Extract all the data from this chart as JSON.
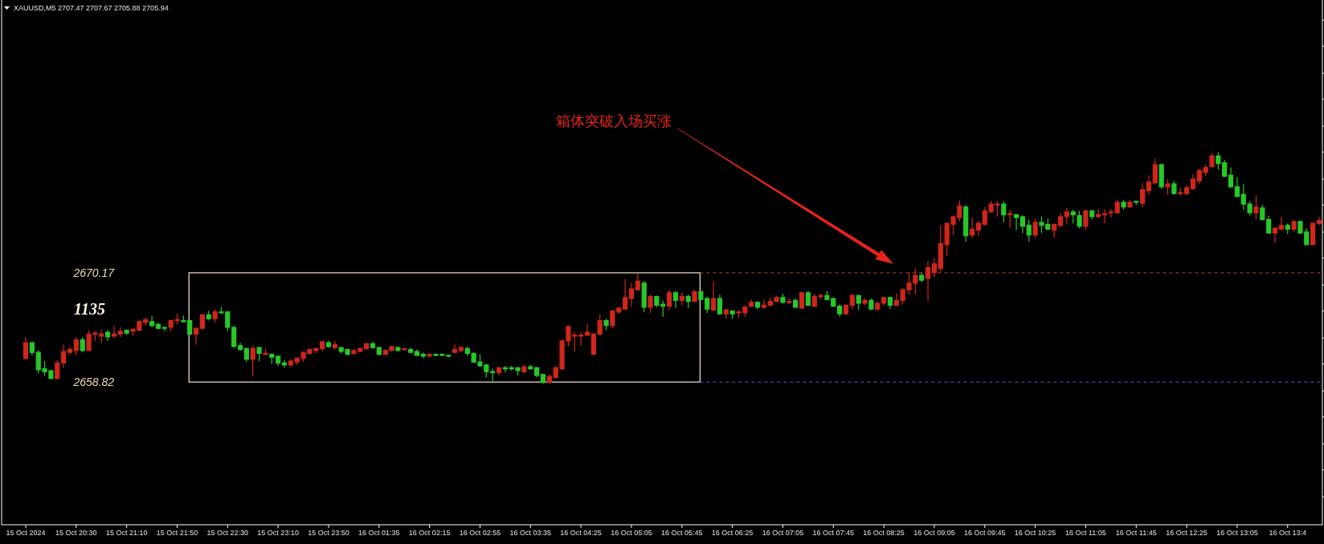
{
  "chart_data": {
    "type": "candlestick",
    "title": "XAUUSD,M5  2707.47 2707.67 2705.88 2705.94",
    "categories": [
      "15 Oct 2024",
      null,
      null,
      null,
      null,
      null,
      null,
      null,
      "15 Oct 20:30",
      null,
      null,
      null,
      null,
      null,
      null,
      null,
      "15 Oct 21:10",
      null,
      null,
      null,
      null,
      null,
      null,
      null,
      "15 Oct 21:50",
      null,
      null,
      null,
      null,
      null,
      null,
      null,
      "15 Oct 22:30",
      null,
      null,
      null,
      null,
      null,
      null,
      null,
      "15 Oct 23:10",
      null,
      null,
      null,
      null,
      null,
      null,
      null,
      "15 Oct 23:50",
      null,
      null,
      null,
      null,
      null,
      null,
      null,
      "16 Oct 01:35",
      null,
      null,
      null,
      null,
      null,
      null,
      null,
      "16 Oct 02:15",
      null,
      null,
      null,
      null,
      null,
      null,
      null,
      "16 Oct 02:55",
      null,
      null,
      null,
      null,
      null,
      null,
      null,
      "16 Oct 03:35",
      null,
      null,
      null,
      null,
      null,
      null,
      null,
      "16 Oct 04:25",
      null,
      null,
      null,
      null,
      null,
      null,
      null,
      "16 Oct 05:05",
      null,
      null,
      null,
      null,
      null,
      null,
      null,
      "16 Oct 05:45",
      null,
      null,
      null,
      null,
      null,
      null,
      null,
      "16 Oct 06:25",
      null,
      null,
      null,
      null,
      null,
      null,
      null,
      "16 Oct 07:05",
      null,
      null,
      null,
      null,
      null,
      null,
      null,
      "16 Oct 07:45",
      null,
      null,
      null,
      null,
      null,
      null,
      null,
      "16 Oct 08:25",
      null,
      null,
      null,
      null,
      null,
      null,
      null,
      "16 Oct 09:05",
      null,
      null,
      null,
      null,
      null,
      null,
      null,
      "16 Oct 09:45",
      null,
      null,
      null,
      null,
      null,
      null,
      null,
      "16 Oct 10:25",
      null,
      null,
      null,
      null,
      null,
      null,
      null,
      "16 Oct 11:05",
      null,
      null,
      null,
      null,
      null,
      null,
      null,
      "16 Oct 11:45",
      null,
      null,
      null,
      null,
      null,
      null,
      null,
      "16 Oct 12:25",
      null,
      null,
      null,
      null,
      null,
      null,
      null,
      "16 Oct 13:05",
      null,
      null,
      null,
      null,
      null,
      null,
      null,
      "16 Oct 13:4",
      null,
      null,
      null,
      null,
      null
    ],
    "ohlc": [
      [
        2661.3,
        2663.5,
        2661.1,
        2662.9
      ],
      [
        2662.9,
        2663.0,
        2661.6,
        2661.9
      ],
      [
        2661.9,
        2662.1,
        2659.7,
        2660.1
      ],
      [
        2660.2,
        2661.0,
        2659.5,
        2659.9
      ],
      [
        2660.0,
        2660.1,
        2659.1,
        2659.2
      ],
      [
        2659.2,
        2661.1,
        2659.1,
        2660.8
      ],
      [
        2660.8,
        2662.7,
        2660.3,
        2662.0
      ],
      [
        2661.9,
        2662.5,
        2661.6,
        2662.2
      ],
      [
        2662.1,
        2663.5,
        2661.6,
        2663.2
      ],
      [
        2663.2,
        2663.5,
        2661.9,
        2662.1
      ],
      [
        2662.1,
        2664.2,
        2662.1,
        2663.8
      ],
      [
        2663.8,
        2664.1,
        2663.1,
        2663.9
      ],
      [
        2663.6,
        2664.3,
        2662.9,
        2663.8
      ],
      [
        2664.0,
        2664.2,
        2663.1,
        2663.5
      ],
      [
        2663.6,
        2664.6,
        2663.4,
        2663.8
      ],
      [
        2663.8,
        2664.5,
        2663.5,
        2664.1
      ],
      [
        2664.2,
        2664.3,
        2663.7,
        2663.9
      ],
      [
        2664.1,
        2664.4,
        2663.6,
        2664.3
      ],
      [
        2664.2,
        2665.3,
        2664.1,
        2665.1
      ],
      [
        2665.0,
        2665.5,
        2664.7,
        2665.3
      ],
      [
        2665.1,
        2665.7,
        2664.5,
        2664.7
      ],
      [
        2664.8,
        2665.0,
        2664.3,
        2664.4
      ],
      [
        2664.5,
        2664.6,
        2664.1,
        2664.4
      ],
      [
        2664.5,
        2665.3,
        2664.1,
        2665.2
      ],
      [
        2665.2,
        2665.9,
        2664.8,
        2665.3
      ],
      [
        2665.2,
        2665.7,
        2665.0,
        2665.1
      ],
      [
        2665.2,
        2665.3,
        2663.7,
        2663.8
      ],
      [
        2663.8,
        2664.4,
        2662.7,
        2664.4
      ],
      [
        2664.4,
        2665.9,
        2664.3,
        2665.8
      ],
      [
        2665.8,
        2666.2,
        2665.2,
        2665.4
      ],
      [
        2665.4,
        2666.4,
        2665.0,
        2666.1
      ],
      [
        2666.1,
        2666.6,
        2665.9,
        2666.0
      ],
      [
        2666.1,
        2666.2,
        2664.1,
        2664.5
      ],
      [
        2664.5,
        2664.7,
        2662.4,
        2662.5
      ],
      [
        2662.6,
        2662.9,
        2662.1,
        2662.2
      ],
      [
        2662.3,
        2662.4,
        2660.9,
        2661.2
      ],
      [
        2661.2,
        2662.6,
        2659.4,
        2662.3
      ],
      [
        2662.4,
        2662.5,
        2661.0,
        2661.8
      ],
      [
        2661.7,
        2662.3,
        2661.6,
        2661.8
      ],
      [
        2661.7,
        2661.8,
        2660.7,
        2661.4
      ],
      [
        2661.5,
        2661.6,
        2660.5,
        2660.8
      ],
      [
        2660.8,
        2661.1,
        2660.3,
        2660.6
      ],
      [
        2660.6,
        2661.2,
        2660.4,
        2661.0
      ],
      [
        2660.9,
        2661.4,
        2660.6,
        2661.3
      ],
      [
        2661.3,
        2662.0,
        2660.9,
        2661.9
      ],
      [
        2661.8,
        2662.3,
        2661.7,
        2662.2
      ],
      [
        2662.1,
        2662.4,
        2661.8,
        2662.3
      ],
      [
        2662.3,
        2663.1,
        2662.0,
        2663.0
      ],
      [
        2662.9,
        2663.1,
        2662.4,
        2662.5
      ],
      [
        2662.4,
        2663.1,
        2662.2,
        2662.7
      ],
      [
        2662.4,
        2662.5,
        2661.8,
        2662.0
      ],
      [
        2662.2,
        2662.3,
        2661.6,
        2661.7
      ],
      [
        2661.8,
        2662.2,
        2661.6,
        2662.1
      ],
      [
        2662.0,
        2662.4,
        2661.9,
        2662.3
      ],
      [
        2662.3,
        2662.9,
        2662.1,
        2662.8
      ],
      [
        2662.8,
        2663.0,
        2662.3,
        2662.4
      ],
      [
        2662.4,
        2662.5,
        2661.6,
        2661.7
      ],
      [
        2661.7,
        2662.2,
        2661.6,
        2662.1
      ],
      [
        2662.1,
        2662.6,
        2662.0,
        2662.5
      ],
      [
        2662.4,
        2662.5,
        2662.0,
        2662.1
      ],
      [
        2662.2,
        2662.3,
        2662.1,
        2662.3
      ],
      [
        2662.2,
        2662.4,
        2661.8,
        2661.9
      ],
      [
        2662.0,
        2662.2,
        2661.5,
        2661.6
      ],
      [
        2661.7,
        2661.9,
        2661.3,
        2661.5
      ],
      [
        2661.5,
        2661.8,
        2661.4,
        2661.7
      ],
      [
        2661.7,
        2661.8,
        2661.5,
        2661.6
      ],
      [
        2661.7,
        2661.8,
        2661.5,
        2661.6
      ],
      [
        2661.6,
        2661.6,
        2661.4,
        2661.5
      ],
      [
        2661.9,
        2662.7,
        2661.8,
        2662.2
      ],
      [
        2662.1,
        2662.6,
        2661.9,
        2662.4
      ],
      [
        2662.3,
        2662.5,
        2661.5,
        2661.8
      ],
      [
        2661.8,
        2661.9,
        2660.8,
        2660.9
      ],
      [
        2660.9,
        2661.7,
        2660.4,
        2660.5
      ],
      [
        2660.6,
        2660.7,
        2659.3,
        2659.9
      ],
      [
        2659.9,
        2660.2,
        2658.8,
        2659.8
      ],
      [
        2659.8,
        2660.4,
        2659.5,
        2660.3
      ],
      [
        2660.3,
        2660.5,
        2659.8,
        2660.2
      ],
      [
        2660.3,
        2660.5,
        2660.0,
        2660.2
      ],
      [
        2660.3,
        2660.4,
        2659.5,
        2660.0
      ],
      [
        2659.9,
        2660.6,
        2659.7,
        2660.4
      ],
      [
        2660.4,
        2660.6,
        2660.1,
        2660.2
      ],
      [
        2660.3,
        2660.4,
        2659.3,
        2659.5
      ],
      [
        2659.6,
        2659.7,
        2658.6,
        2658.8
      ],
      [
        2658.8,
        2659.6,
        2658.6,
        2659.4
      ],
      [
        2659.3,
        2660.5,
        2659.2,
        2660.3
      ],
      [
        2660.2,
        2663.2,
        2660.1,
        2663.1
      ],
      [
        2663.1,
        2664.7,
        2662.5,
        2664.6
      ],
      [
        2663.6,
        2664.0,
        2662.0,
        2663.7
      ],
      [
        2663.6,
        2664.0,
        2662.6,
        2663.7
      ],
      [
        2663.7,
        2664.9,
        2663.6,
        2664.0
      ],
      [
        2661.7,
        2663.9,
        2661.6,
        2663.8
      ],
      [
        2663.8,
        2665.9,
        2663.7,
        2665.2
      ],
      [
        2665.2,
        2665.4,
        2664.2,
        2664.7
      ],
      [
        2664.7,
        2666.3,
        2664.4,
        2666.2
      ],
      [
        2666.1,
        2666.6,
        2665.9,
        2666.5
      ],
      [
        2666.4,
        2669.5,
        2666.3,
        2667.6
      ],
      [
        2667.5,
        2669.1,
        2666.6,
        2668.5
      ],
      [
        2668.4,
        2670.1,
        2668.3,
        2669.3
      ],
      [
        2669.1,
        2669.3,
        2666.1,
        2666.6
      ],
      [
        2666.6,
        2667.9,
        2666.0,
        2667.7
      ],
      [
        2667.7,
        2667.8,
        2666.6,
        2666.8
      ],
      [
        2666.9,
        2667.3,
        2665.6,
        2666.7
      ],
      [
        2666.7,
        2668.4,
        2666.3,
        2668.1
      ],
      [
        2668.1,
        2668.3,
        2666.5,
        2667.3
      ],
      [
        2667.3,
        2668.1,
        2666.8,
        2667.7
      ],
      [
        2667.7,
        2667.9,
        2666.5,
        2667.2
      ],
      [
        2667.2,
        2668.4,
        2667.1,
        2668.2
      ],
      [
        2668.2,
        2668.3,
        2667.4,
        2667.4
      ],
      [
        2667.5,
        2667.7,
        2666.0,
        2666.4
      ],
      [
        2666.3,
        2669.3,
        2666.2,
        2667.5
      ],
      [
        2667.5,
        2667.9,
        2665.8,
        2665.9
      ],
      [
        2665.9,
        2666.5,
        2665.4,
        2666.3
      ],
      [
        2666.2,
        2666.3,
        2665.4,
        2665.9
      ],
      [
        2666.0,
        2666.3,
        2665.5,
        2666.1
      ],
      [
        2666.0,
        2666.8,
        2665.6,
        2666.6
      ],
      [
        2666.7,
        2667.4,
        2666.6,
        2667.1
      ],
      [
        2667.1,
        2667.2,
        2666.4,
        2666.6
      ],
      [
        2666.6,
        2667.4,
        2666.4,
        2666.8
      ],
      [
        2666.8,
        2667.6,
        2666.7,
        2667.2
      ],
      [
        2667.2,
        2667.8,
        2667.1,
        2667.6
      ],
      [
        2667.6,
        2668.0,
        2667.0,
        2667.1
      ],
      [
        2667.1,
        2667.5,
        2666.9,
        2667.2
      ],
      [
        2667.3,
        2667.5,
        2666.5,
        2666.6
      ],
      [
        2666.5,
        2668.2,
        2666.4,
        2668.1
      ],
      [
        2668.1,
        2668.3,
        2666.7,
        2666.8
      ],
      [
        2666.7,
        2668.0,
        2666.6,
        2667.7
      ],
      [
        2667.7,
        2668.0,
        2667.4,
        2667.8
      ],
      [
        2667.8,
        2668.3,
        2667.3,
        2667.4
      ],
      [
        2667.5,
        2667.6,
        2666.6,
        2666.7
      ],
      [
        2666.7,
        2666.9,
        2665.6,
        2665.9
      ],
      [
        2665.9,
        2666.9,
        2665.8,
        2666.8
      ],
      [
        2666.8,
        2668.0,
        2666.4,
        2667.8
      ],
      [
        2667.8,
        2667.9,
        2666.3,
        2667.0
      ],
      [
        2667.0,
        2667.5,
        2666.8,
        2667.3
      ],
      [
        2667.3,
        2667.5,
        2666.3,
        2666.4
      ],
      [
        2666.4,
        2667.2,
        2666.2,
        2667.0
      ],
      [
        2667.0,
        2667.7,
        2666.8,
        2667.6
      ],
      [
        2667.6,
        2667.7,
        2666.4,
        2666.8
      ],
      [
        2666.8,
        2668.0,
        2666.7,
        2667.3
      ],
      [
        2667.3,
        2668.6,
        2666.9,
        2668.4
      ],
      [
        2668.4,
        2670.2,
        2667.9,
        2669.1
      ],
      [
        2669.1,
        2670.6,
        2667.9,
        2669.9
      ],
      [
        2669.9,
        2670.2,
        2669.2,
        2669.4
      ],
      [
        2669.6,
        2671.4,
        2667.2,
        2670.7
      ],
      [
        2670.2,
        2671.7,
        2669.7,
        2671.1
      ],
      [
        2670.6,
        2675.1,
        2670.3,
        2673.2
      ],
      [
        2673.1,
        2675.4,
        2671.9,
        2675.3
      ],
      [
        2675.2,
        2676.1,
        2674.1,
        2676.0
      ],
      [
        2675.9,
        2677.7,
        2675.5,
        2677.1
      ],
      [
        2677.0,
        2677.2,
        2673.4,
        2674.0
      ],
      [
        2674.1,
        2675.9,
        2673.8,
        2674.7
      ],
      [
        2674.6,
        2675.6,
        2674.0,
        2675.3
      ],
      [
        2675.2,
        2677.0,
        2675.1,
        2676.6
      ],
      [
        2676.5,
        2677.6,
        2676.4,
        2677.3
      ],
      [
        2677.2,
        2677.6,
        2676.0,
        2677.3
      ],
      [
        2677.3,
        2677.6,
        2675.4,
        2676.2
      ],
      [
        2676.2,
        2676.7,
        2674.8,
        2676.3
      ],
      [
        2676.2,
        2676.3,
        2674.6,
        2675.9
      ],
      [
        2676.0,
        2676.1,
        2674.3,
        2675.0
      ],
      [
        2675.1,
        2675.7,
        2673.4,
        2674.1
      ],
      [
        2674.1,
        2675.8,
        2673.8,
        2675.4
      ],
      [
        2675.4,
        2676.0,
        2674.3,
        2675.1
      ],
      [
        2675.2,
        2675.8,
        2674.6,
        2674.7
      ],
      [
        2674.6,
        2675.3,
        2673.8,
        2675.2
      ],
      [
        2675.1,
        2676.4,
        2674.9,
        2676.0
      ],
      [
        2676.0,
        2676.9,
        2675.2,
        2676.5
      ],
      [
        2676.5,
        2676.7,
        2675.3,
        2676.2
      ],
      [
        2676.1,
        2676.6,
        2674.8,
        2675.0
      ],
      [
        2675.0,
        2676.7,
        2674.6,
        2676.6
      ],
      [
        2676.6,
        2676.7,
        2675.7,
        2676.0
      ],
      [
        2676.0,
        2676.8,
        2675.9,
        2676.2
      ],
      [
        2676.2,
        2676.8,
        2675.3,
        2676.3
      ],
      [
        2676.4,
        2676.8,
        2675.9,
        2676.5
      ],
      [
        2676.4,
        2677.7,
        2676.3,
        2677.5
      ],
      [
        2677.5,
        2677.7,
        2676.7,
        2677.0
      ],
      [
        2677.0,
        2677.7,
        2676.9,
        2677.5
      ],
      [
        2677.6,
        2677.6,
        2677.2,
        2677.5
      ],
      [
        2677.4,
        2679.5,
        2677.0,
        2678.8
      ],
      [
        2678.7,
        2680.3,
        2678.3,
        2679.6
      ],
      [
        2679.5,
        2682.0,
        2679.4,
        2681.4
      ],
      [
        2681.4,
        2681.5,
        2678.9,
        2679.1
      ],
      [
        2679.1,
        2679.9,
        2678.3,
        2679.4
      ],
      [
        2679.4,
        2679.7,
        2678.3,
        2678.4
      ],
      [
        2678.4,
        2679.0,
        2678.2,
        2678.5
      ],
      [
        2678.4,
        2679.3,
        2678.2,
        2679.0
      ],
      [
        2678.9,
        2680.4,
        2678.8,
        2679.9
      ],
      [
        2679.7,
        2680.9,
        2679.4,
        2680.8
      ],
      [
        2680.6,
        2681.4,
        2680.2,
        2681.1
      ],
      [
        2681.2,
        2682.6,
        2681.1,
        2682.3
      ],
      [
        2682.3,
        2682.7,
        2680.9,
        2681.5
      ],
      [
        2681.6,
        2681.9,
        2680.1,
        2680.2
      ],
      [
        2680.3,
        2681.1,
        2679.0,
        2679.1
      ],
      [
        2679.1,
        2680.1,
        2678.0,
        2678.1
      ],
      [
        2678.3,
        2679.4,
        2676.7,
        2677.3
      ],
      [
        2677.3,
        2677.6,
        2676.1,
        2676.4
      ],
      [
        2676.4,
        2678.2,
        2675.7,
        2677.0
      ],
      [
        2676.9,
        2677.2,
        2675.6,
        2675.7
      ],
      [
        2675.7,
        2676.1,
        2674.2,
        2674.3
      ],
      [
        2674.3,
        2674.9,
        2673.3,
        2674.8
      ],
      [
        2674.7,
        2676.0,
        2674.6,
        2675.1
      ],
      [
        2675.1,
        2675.3,
        2674.2,
        2674.7
      ],
      [
        2674.7,
        2675.6,
        2674.4,
        2675.5
      ],
      [
        2675.5,
        2675.6,
        2674.2,
        2674.3
      ],
      [
        2674.4,
        2674.8,
        2673.0,
        2673.1
      ],
      [
        2673.1,
        2675.4,
        2673.0,
        2675.3
      ],
      [
        2675.3,
        2676.0,
        2675.1,
        2675.6
      ]
    ],
    "colors": [
      "#d0261c",
      "#28c828",
      "#28c828",
      "#28c828",
      "#28c828",
      "#d0261c",
      "#d0261c",
      "#d0261c",
      "#d0261c",
      "#28c828",
      "#d0261c",
      "#d0261c",
      "#d0261c",
      "#28c828",
      "#d0261c",
      "#d0261c",
      "#28c828",
      "#d0261c",
      "#d0261c",
      "#d0261c",
      "#28c828",
      "#28c828",
      "#28c828",
      "#d0261c",
      "#d0261c",
      "#28c828",
      "#28c828",
      "#d0261c",
      "#d0261c",
      "#28c828",
      "#d0261c",
      "#28c828",
      "#28c828",
      "#28c828",
      "#28c828",
      "#28c828",
      "#d0261c",
      "#28c828",
      "#d0261c",
      "#28c828",
      "#28c828",
      "#28c828",
      "#d0261c",
      "#d0261c",
      "#d0261c",
      "#d0261c",
      "#d0261c",
      "#d0261c",
      "#28c828",
      "#d0261c",
      "#28c828",
      "#28c828",
      "#d0261c",
      "#d0261c",
      "#d0261c",
      "#28c828",
      "#28c828",
      "#d0261c",
      "#d0261c",
      "#28c828",
      "#d0261c",
      "#28c828",
      "#28c828",
      "#28c828",
      "#d0261c",
      "#28c828",
      "#28c828",
      "#28c828",
      "#d0261c",
      "#d0261c",
      "#28c828",
      "#28c828",
      "#28c828",
      "#28c828",
      "#28c828",
      "#d0261c",
      "#28c828",
      "#28c828",
      "#28c828",
      "#d0261c",
      "#28c828",
      "#28c828",
      "#28c828",
      "#d0261c",
      "#d0261c",
      "#d0261c",
      "#d0261c",
      "#d0261c",
      "#d0261c",
      "#d0261c",
      "#d0261c",
      "#d0261c",
      "#28c828",
      "#d0261c",
      "#d0261c",
      "#d0261c",
      "#d0261c",
      "#d0261c",
      "#28c828",
      "#d0261c",
      "#28c828",
      "#28c828",
      "#d0261c",
      "#28c828",
      "#d0261c",
      "#28c828",
      "#d0261c",
      "#28c828",
      "#28c828",
      "#d0261c",
      "#28c828",
      "#d0261c",
      "#28c828",
      "#d0261c",
      "#d0261c",
      "#d0261c",
      "#28c828",
      "#d0261c",
      "#d0261c",
      "#d0261c",
      "#28c828",
      "#d0261c",
      "#28c828",
      "#d0261c",
      "#28c828",
      "#d0261c",
      "#d0261c",
      "#28c828",
      "#28c828",
      "#28c828",
      "#d0261c",
      "#d0261c",
      "#28c828",
      "#d0261c",
      "#28c828",
      "#d0261c",
      "#d0261c",
      "#28c828",
      "#d0261c",
      "#d0261c",
      "#d0261c",
      "#d0261c",
      "#28c828",
      "#d0261c",
      "#d0261c",
      "#d0261c",
      "#d0261c",
      "#d0261c",
      "#d0261c",
      "#28c828",
      "#d0261c",
      "#d0261c",
      "#d0261c",
      "#d0261c",
      "#d0261c",
      "#28c828",
      "#d0261c",
      "#28c828",
      "#28c828",
      "#28c828",
      "#d0261c",
      "#28c828",
      "#28c828",
      "#d0261c",
      "#d0261c",
      "#d0261c",
      "#28c828",
      "#28c828",
      "#d0261c",
      "#28c828",
      "#d0261c",
      "#d0261c",
      "#d0261c",
      "#d0261c",
      "#28c828",
      "#d0261c",
      "#28c828",
      "#d0261c",
      "#d0261c",
      "#d0261c",
      "#28c828",
      "#d0261c",
      "#28c828",
      "#d0261c",
      "#d0261c",
      "#d0261c",
      "#d0261c",
      "#d0261c",
      "#d0261c",
      "#28c828",
      "#28c828",
      "#28c828",
      "#28c828",
      "#28c828",
      "#28c828",
      "#d0261c",
      "#28c828",
      "#28c828",
      "#d0261c",
      "#d0261c",
      "#28c828",
      "#d0261c",
      "#28c828",
      "#28c828",
      "#d0261c",
      "#d0261c"
    ],
    "ylim": [
      2644.0,
      2698.5
    ],
    "yticks": [
      2658.82,
      2670.17,
      {
        "value": 2696.4,
        "label": null
      },
      {
        "value": 2693.7,
        "label": null
      },
      {
        "value": 2690.9,
        "label": null
      },
      {
        "value": 2688.2,
        "label": null
      },
      {
        "value": 2685.4,
        "label": null
      },
      {
        "value": 2682.7,
        "label": null
      },
      {
        "value": 2679.9,
        "label": null
      },
      {
        "value": 2677.2,
        "label": null
      },
      {
        "value": 2674.4,
        "label": null
      },
      {
        "value": 2671.7,
        "label": null
      },
      {
        "value": 2668.9,
        "label": null
      },
      {
        "value": 2666.2,
        "label": null
      },
      {
        "value": 2663.4,
        "label": null
      },
      {
        "value": 2660.7,
        "label": null
      },
      {
        "value": 2657.9,
        "label": null
      },
      {
        "value": 2655.2,
        "label": null
      },
      {
        "value": 2652.4,
        "label": null
      },
      {
        "value": 2649.7,
        "label": null
      },
      {
        "value": 2646.9,
        "label": null
      }
    ],
    "ref_lines": [
      {
        "axis": "y",
        "value": 2670.17,
        "color": "#c83c3c",
        "line_style": "dashed"
      },
      {
        "axis": "y",
        "value": 2658.82,
        "color": "#5a5ad2",
        "line_style": "dashed"
      }
    ],
    "annotations": [
      "1135",
      "箱体突破入场买涨"
    ]
  }
}
